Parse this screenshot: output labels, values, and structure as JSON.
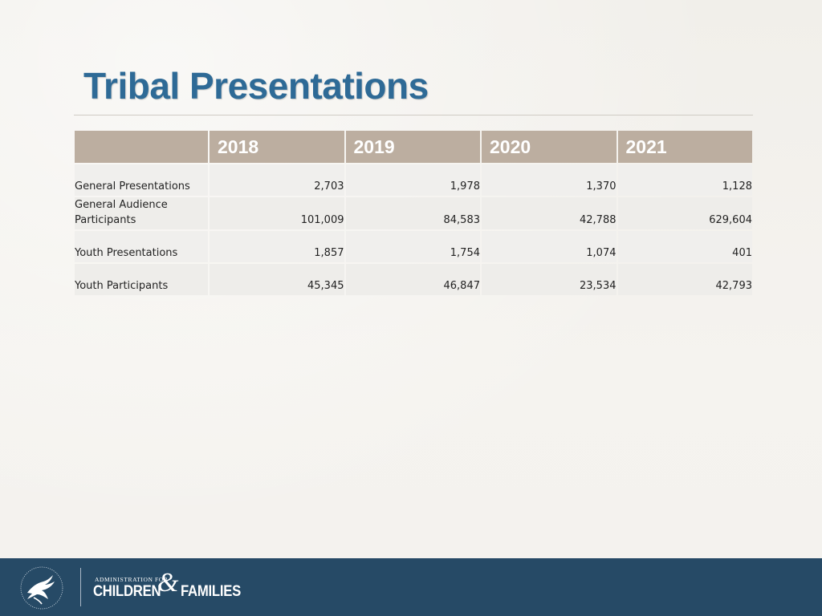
{
  "slide": {
    "title": "Tribal Presentations"
  },
  "table": {
    "columns": [
      "2018",
      "2019",
      "2020",
      "2021"
    ],
    "rows": [
      {
        "label": "General Presentations",
        "values": [
          "2,703",
          "1,978",
          "1,370",
          "1,128"
        ]
      },
      {
        "label": "General Audience Participants",
        "values": [
          "101,009",
          "84,583",
          "42,788",
          "629,604"
        ]
      },
      {
        "label": "Youth Presentations",
        "values": [
          "1,857",
          "1,754",
          "1,074",
          "401"
        ]
      },
      {
        "label": "Youth Participants",
        "values": [
          "45,345",
          "46,847",
          "23,534",
          "42,793"
        ]
      }
    ]
  },
  "footer": {
    "logo_icon": "hhs-eagle-seal-icon",
    "admin_text": "ADMINISTRATION FOR",
    "children_text": "CHILDREN",
    "amp_text": "&",
    "families_text": "FAMILIES",
    "colors": {
      "bar": "#264a66",
      "text": "#ffffff"
    }
  },
  "colors": {
    "title": "#2e6a96",
    "header_fill": "#bcaea0",
    "header_text": "#ffffff",
    "cell_fill": "#f0efed",
    "background": "#f3f1ec"
  }
}
